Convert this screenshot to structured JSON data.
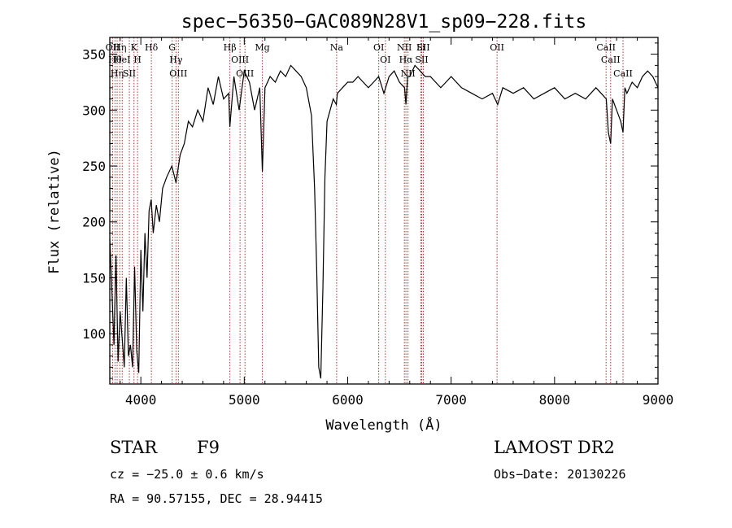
{
  "chart_data": {
    "type": "line",
    "title": "spec−56350−GAC089N28V1_sp09−228.fits",
    "xlabel": "Wavelength (Å)",
    "ylabel": "Flux (relative)",
    "xlim": [
      3700,
      9000
    ],
    "ylim": [
      55,
      365
    ],
    "x_ticks": [
      4000,
      5000,
      6000,
      7000,
      8000,
      9000
    ],
    "y_ticks": [
      100,
      150,
      200,
      250,
      300,
      350
    ],
    "grid": false,
    "line_color": "#000000",
    "marker_color": "#b03030",
    "spectrum": {
      "x": [
        3700,
        3720,
        3740,
        3760,
        3780,
        3800,
        3820,
        3840,
        3860,
        3880,
        3900,
        3920,
        3940,
        3960,
        3980,
        4000,
        4020,
        4040,
        4060,
        4080,
        4100,
        4120,
        4150,
        4180,
        4210,
        4250,
        4300,
        4340,
        4380,
        4420,
        4460,
        4500,
        4550,
        4600,
        4650,
        4700,
        4750,
        4800,
        4850,
        4861,
        4900,
        4950,
        5000,
        5050,
        5100,
        5150,
        5175,
        5200,
        5250,
        5300,
        5350,
        5400,
        5450,
        5500,
        5550,
        5600,
        5650,
        5680,
        5700,
        5720,
        5740,
        5760,
        5780,
        5800,
        5830,
        5860,
        5890,
        5900,
        5950,
        6000,
        6050,
        6100,
        6150,
        6200,
        6250,
        6300,
        6350,
        6400,
        6450,
        6500,
        6550,
        6563,
        6580,
        6600,
        6650,
        6700,
        6750,
        6800,
        6850,
        6900,
        6950,
        7000,
        7100,
        7200,
        7300,
        7400,
        7450,
        7500,
        7600,
        7700,
        7800,
        7900,
        8000,
        8100,
        8200,
        8300,
        8400,
        8450,
        8500,
        8520,
        8542,
        8560,
        8600,
        8640,
        8662,
        8680,
        8700,
        8750,
        8800,
        8850,
        8900,
        8950,
        9000
      ],
      "y": [
        185,
        140,
        90,
        170,
        75,
        120,
        95,
        70,
        150,
        80,
        90,
        70,
        160,
        85,
        65,
        175,
        120,
        190,
        150,
        210,
        220,
        190,
        215,
        200,
        230,
        240,
        250,
        235,
        260,
        270,
        290,
        285,
        300,
        290,
        320,
        305,
        330,
        310,
        315,
        285,
        330,
        300,
        335,
        325,
        300,
        320,
        245,
        320,
        330,
        325,
        335,
        330,
        340,
        335,
        330,
        320,
        295,
        230,
        160,
        70,
        60,
        140,
        240,
        290,
        300,
        310,
        305,
        315,
        320,
        325,
        325,
        330,
        325,
        320,
        325,
        330,
        315,
        330,
        335,
        325,
        320,
        305,
        330,
        330,
        340,
        335,
        330,
        330,
        325,
        320,
        325,
        330,
        320,
        315,
        310,
        315,
        305,
        320,
        315,
        320,
        310,
        315,
        320,
        310,
        315,
        310,
        320,
        315,
        310,
        280,
        270,
        310,
        300,
        290,
        280,
        320,
        315,
        325,
        320,
        330,
        335,
        330,
        320
      ]
    },
    "line_markers": [
      {
        "wl": 3727,
        "label": "OII"
      },
      {
        "wl": 3750,
        "label": "Hθ"
      },
      {
        "wl": 3771,
        "label": "Hη"
      },
      {
        "wl": 3797,
        "label": "Hη"
      },
      {
        "wl": 3820,
        "label": "HeI"
      },
      {
        "wl": 3889,
        "label": "SII"
      },
      {
        "wl": 3934,
        "label": "K"
      },
      {
        "wl": 3968,
        "label": "H"
      },
      {
        "wl": 4102,
        "label": "Hδ"
      },
      {
        "wl": 4303,
        "label": "G"
      },
      {
        "wl": 4340,
        "label": "Hγ"
      },
      {
        "wl": 4363,
        "label": "OIII"
      },
      {
        "wl": 4861,
        "label": "Hβ"
      },
      {
        "wl": 4959,
        "label": "OIII"
      },
      {
        "wl": 5007,
        "label": "OIII"
      },
      {
        "wl": 5175,
        "label": "Mg"
      },
      {
        "wl": 5893,
        "label": "Na"
      },
      {
        "wl": 6300,
        "label": "OI"
      },
      {
        "wl": 6364,
        "label": "OI"
      },
      {
        "wl": 6548,
        "label": "NII"
      },
      {
        "wl": 6563,
        "label": "Hα"
      },
      {
        "wl": 6583,
        "label": "NII"
      },
      {
        "wl": 6707,
        "label": "Li"
      },
      {
        "wl": 6716,
        "label": "SII"
      },
      {
        "wl": 6731,
        "label": "SII"
      },
      {
        "wl": 7444,
        "label": "OII"
      },
      {
        "wl": 8498,
        "label": "CaII"
      },
      {
        "wl": 8542,
        "label": "CaII"
      },
      {
        "wl": 8662,
        "label": "CaII"
      }
    ]
  },
  "info": {
    "class": "STAR",
    "subclass": "F9",
    "survey": "LAMOST DR2",
    "cz": "cz = −25.0 ± 0.6 km/s",
    "obs_date": "Obs−Date: 20130226",
    "coords": "RA =  90.57155, DEC =  28.94415"
  }
}
